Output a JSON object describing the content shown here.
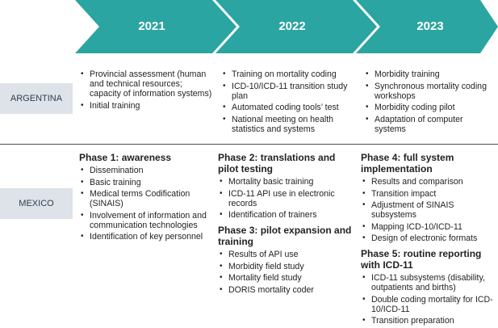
{
  "years": [
    "2021",
    "2022",
    "2023"
  ],
  "colors": {
    "chevron": "#2aa5a1",
    "country_bg": "#dde3e8",
    "separator": "#4c4c4c"
  },
  "countries": {
    "argentina": "ARGENTINA",
    "mexico": "MEXICO"
  },
  "argentina": {
    "y2021": [
      "Provincial assessment (human and technical resources; capacity of information systems)",
      "Initial training"
    ],
    "y2022": [
      "Training on mortality coding",
      "ICD-10/ICD-11 transition study plan",
      "Automated coding tools’ test",
      "National meeting on health statistics and systems"
    ],
    "y2023": [
      "Morbidity training",
      "Synchronous mortality coding workshops",
      "Morbidity coding pilot",
      "Adaptation of computer systems"
    ]
  },
  "mexico": {
    "phase1": {
      "title": "Phase 1: awareness",
      "items": [
        "Dissemination",
        "Basic training",
        "Medical terms Codification (SINAIS)",
        "Involvement of information and communication technologies",
        "Identification of key personnel"
      ]
    },
    "phase2": {
      "title": "Phase 2: translations and pilot testing",
      "items": [
        "Mortality basic training",
        "ICD-11 API use in electronic records",
        "Identification of trainers"
      ]
    },
    "phase3": {
      "title": "Phase 3: pilot expansion and training",
      "items": [
        "Results of API use",
        "Morbidity field study",
        "Mortality field study",
        "DORIS mortality coder"
      ]
    },
    "phase4": {
      "title": "Phase 4: full system implementation",
      "items": [
        "Results and comparison",
        "Transition impact",
        "Adjustment of SINAIS subsystems",
        "Mapping ICD-10/ICD-11",
        "Design of electronic formats"
      ]
    },
    "phase5": {
      "title": "Phase 5: routine reporting with ICD-11",
      "items": [
        "ICD-11 subsystems (disability, outpatients and births)",
        "Double coding mortality for ICD-10/ICD-11",
        "Transition preparation"
      ]
    }
  }
}
